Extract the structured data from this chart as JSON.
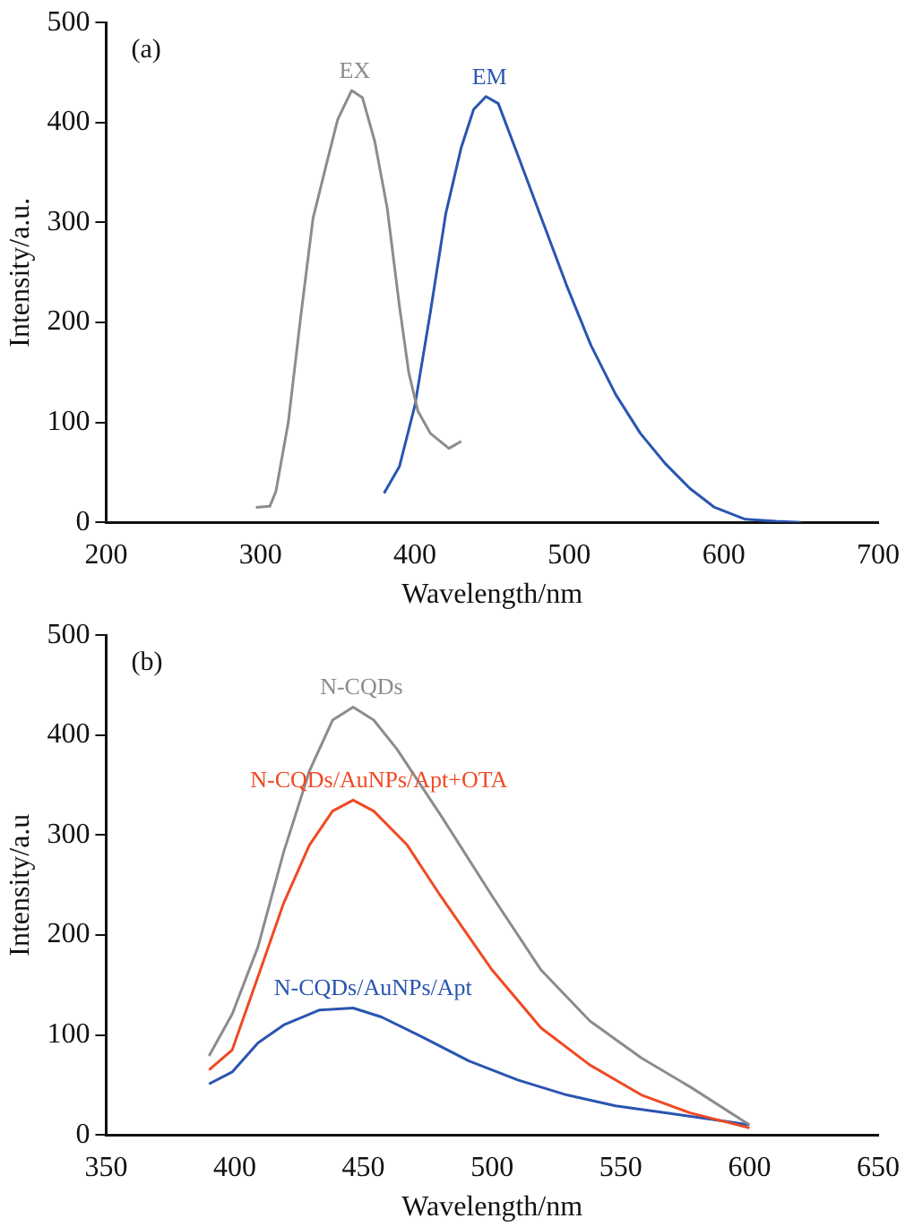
{
  "chart_data": [
    {
      "type": "line",
      "xlabel": "Wavelength/nm",
      "ylabel": "Intensity/a.u.",
      "annotations": [
        "(a)"
      ],
      "xlim": [
        200,
        700
      ],
      "xticks": [
        200,
        300,
        400,
        500,
        600,
        700
      ],
      "ylim": [
        0,
        500
      ],
      "yticks": [
        0,
        100,
        200,
        300,
        400,
        500
      ],
      "grid": false,
      "legend": false,
      "marker": "none",
      "line_style": "solid",
      "series": [
        {
          "name": "EX",
          "color": "#8c8c8c",
          "x": [
            297,
            306,
            310,
            318,
            326,
            334,
            342,
            350,
            359,
            366,
            374,
            382,
            390,
            396,
            402,
            410,
            422,
            430
          ],
          "values": [
            15,
            16,
            31,
            100,
            205,
            304,
            354,
            403,
            432,
            425,
            381,
            315,
            216,
            150,
            111,
            89,
            74,
            81
          ]
        },
        {
          "name": "EM",
          "color": "#2a55b0",
          "x": [
            380,
            390,
            400,
            410,
            420,
            430,
            438,
            446,
            454,
            466,
            482,
            498,
            514,
            530,
            546,
            562,
            578,
            594,
            614,
            634,
            650
          ],
          "values": [
            29,
            56,
            117,
            210,
            309,
            375,
            413,
            426,
            419,
            370,
            304,
            238,
            177,
            128,
            89,
            59,
            34,
            15,
            3,
            1,
            0
          ]
        }
      ]
    },
    {
      "type": "line",
      "xlabel": "Wavelength/nm",
      "ylabel": "Intensity/a.u",
      "annotations": [
        "(b)"
      ],
      "xlim": [
        350,
        650
      ],
      "xticks": [
        350,
        400,
        450,
        500,
        550,
        600,
        650
      ],
      "ylim": [
        0,
        500
      ],
      "yticks": [
        0,
        100,
        200,
        300,
        400,
        500
      ],
      "grid": false,
      "legend": false,
      "marker": "none",
      "line_style": "solid",
      "series": [
        {
          "name": "N-CQDs",
          "color": "#8c8c8c",
          "x": [
            390,
            399,
            409,
            419,
            429,
            438,
            446,
            454,
            463,
            480,
            500,
            519,
            538,
            558,
            577,
            600
          ],
          "values": [
            79,
            121,
            188,
            283,
            364,
            415,
            428,
            415,
            386,
            320,
            239,
            165,
            114,
            77,
            48,
            10
          ]
        },
        {
          "name": "N-CQDs/AuNPs/Apt+OTA",
          "color": "#f04a24",
          "x": [
            390,
            399,
            409,
            419,
            429,
            438,
            446,
            454,
            467,
            480,
            500,
            519,
            538,
            558,
            577,
            600
          ],
          "values": [
            65,
            85,
            158,
            232,
            290,
            324,
            335,
            324,
            290,
            239,
            165,
            107,
            70,
            40,
            22,
            7
          ]
        },
        {
          "name": "N-CQDs/AuNPs/Apt",
          "color": "#2a55b0",
          "x": [
            390,
            399,
            409,
            419,
            433,
            446,
            457,
            472,
            491,
            510,
            529,
            548,
            568,
            587,
            600
          ],
          "values": [
            51,
            63,
            92,
            110,
            125,
            127,
            118,
            99,
            74,
            55,
            40,
            29,
            22,
            15,
            10
          ]
        }
      ]
    }
  ]
}
